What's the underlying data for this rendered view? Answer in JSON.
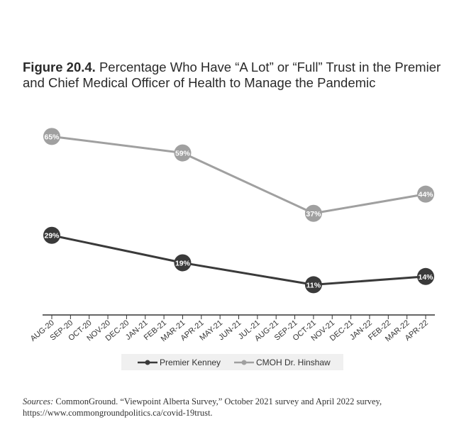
{
  "figure": {
    "label": "Figure 20.4.",
    "title": "Percentage Who Have “A Lot” or “Full” Trust in the Premier and Chief Medical Officer of Health to Manage the Pandemic"
  },
  "chart_data": {
    "type": "line",
    "categories": [
      "AUG-20",
      "SEP-20",
      "OCT-20",
      "NOV-20",
      "DEC-20",
      "JAN-21",
      "FEB-21",
      "MAR-21",
      "APR-21",
      "MAY-21",
      "JUN-21",
      "JUL-21",
      "AUG-21",
      "SEP-21",
      "OCT-21",
      "NOV-21",
      "DEC-21",
      "JAN-22",
      "FEB-22",
      "MAR-22",
      "APR-22"
    ],
    "series": [
      {
        "name": "Premier Kenney",
        "color": "#3a3a3a",
        "points": [
          {
            "x": "AUG-20",
            "y": 29,
            "label": "29%"
          },
          {
            "x": "MAR-21",
            "y": 19,
            "label": "19%"
          },
          {
            "x": "OCT-21",
            "y": 11,
            "label": "11%"
          },
          {
            "x": "APR-22",
            "y": 14,
            "label": "14%"
          }
        ]
      },
      {
        "name": "CMOH Dr. Hinshaw",
        "color": "#a0a0a0",
        "points": [
          {
            "x": "AUG-20",
            "y": 65,
            "label": "65%"
          },
          {
            "x": "MAR-21",
            "y": 59,
            "label": "59%"
          },
          {
            "x": "OCT-21",
            "y": 37,
            "label": "37%"
          },
          {
            "x": "APR-22",
            "y": 44,
            "label": "44%"
          }
        ]
      }
    ],
    "ylim": [
      0,
      70
    ],
    "grid": false,
    "legend_position": "bottom",
    "xlabel": "",
    "ylabel": ""
  },
  "source": {
    "label": "Sources:",
    "text": " CommonGround. “Viewpoint Alberta Survey,” October 2021 survey and April 2022 survey, https://www.commongroundpolitics.ca/covid-19trust."
  }
}
